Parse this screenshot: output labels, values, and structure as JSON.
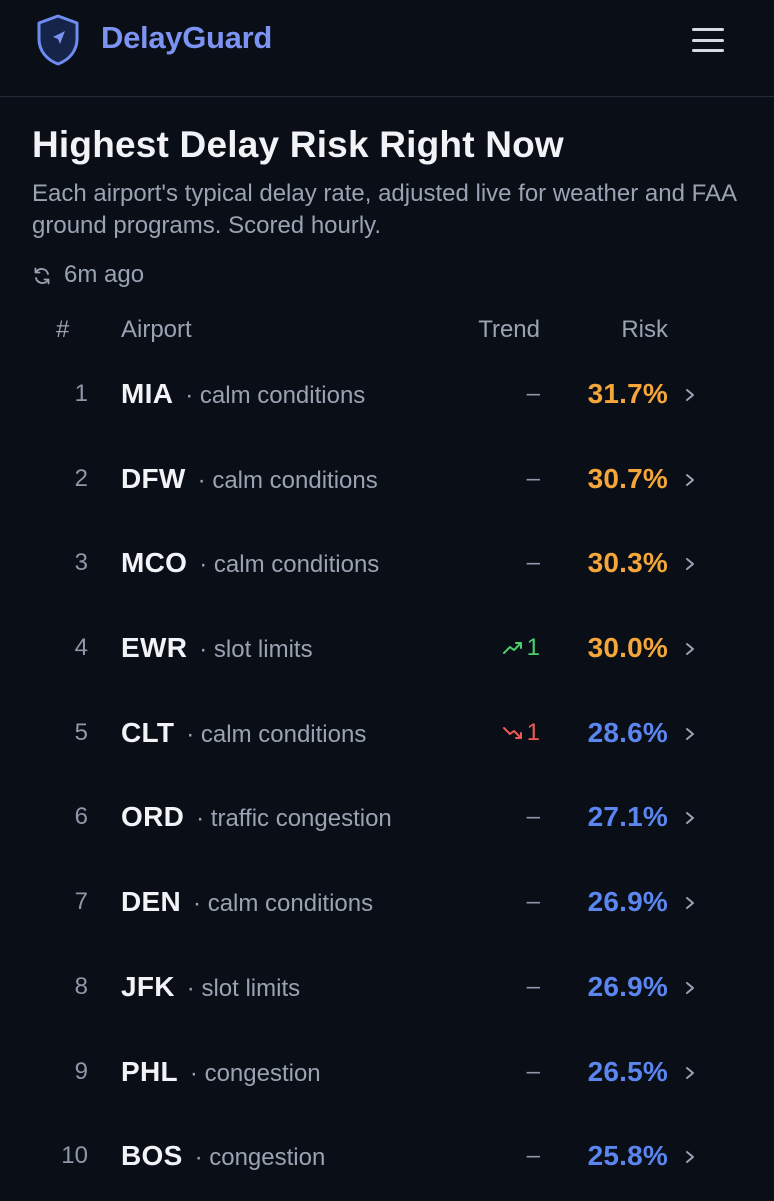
{
  "app": {
    "brand": "DelayGuard",
    "accent": "#7c93f2"
  },
  "page": {
    "title": "Highest Delay Risk Right Now",
    "subtitle": "Each airport's typical delay rate, adjusted live for weather and FAA ground programs. Scored hourly.",
    "updated": "6m ago"
  },
  "table": {
    "headers": {
      "rank": "#",
      "airport": "Airport",
      "trend": "Trend",
      "risk": "Risk"
    },
    "rows": [
      {
        "rank": "1",
        "code": "MIA",
        "condition": "· calm conditions",
        "trend_dir": "none",
        "trend": "–",
        "risk": "31.7%",
        "level": "high"
      },
      {
        "rank": "2",
        "code": "DFW",
        "condition": "· calm conditions",
        "trend_dir": "none",
        "trend": "–",
        "risk": "30.7%",
        "level": "high"
      },
      {
        "rank": "3",
        "code": "MCO",
        "condition": "· calm conditions",
        "trend_dir": "none",
        "trend": "–",
        "risk": "30.3%",
        "level": "high"
      },
      {
        "rank": "4",
        "code": "EWR",
        "condition": "· slot limits",
        "trend_dir": "up",
        "trend": "1",
        "risk": "30.0%",
        "level": "high"
      },
      {
        "rank": "5",
        "code": "CLT",
        "condition": "· calm conditions",
        "trend_dir": "down",
        "trend": "1",
        "risk": "28.6%",
        "level": "medium"
      },
      {
        "rank": "6",
        "code": "ORD",
        "condition": "· traffic congestion",
        "trend_dir": "none",
        "trend": "–",
        "risk": "27.1%",
        "level": "medium"
      },
      {
        "rank": "7",
        "code": "DEN",
        "condition": "· calm conditions",
        "trend_dir": "none",
        "trend": "–",
        "risk": "26.9%",
        "level": "medium"
      },
      {
        "rank": "8",
        "code": "JFK",
        "condition": "· slot limits",
        "trend_dir": "none",
        "trend": "–",
        "risk": "26.9%",
        "level": "medium"
      },
      {
        "rank": "9",
        "code": "PHL",
        "condition": "· congestion",
        "trend_dir": "none",
        "trend": "–",
        "risk": "26.5%",
        "level": "medium"
      },
      {
        "rank": "10",
        "code": "BOS",
        "condition": "· congestion",
        "trend_dir": "none",
        "trend": "–",
        "risk": "25.8%",
        "level": "medium"
      }
    ]
  },
  "colors": {
    "high": "#f4a63b",
    "medium": "#5b86f0",
    "trend_up": "#4ccf6e",
    "trend_down": "#ef5a55",
    "trend_none": "#8f98a8"
  }
}
